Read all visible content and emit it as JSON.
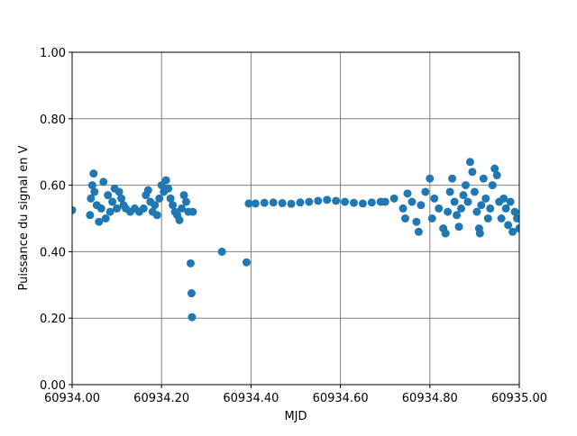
{
  "chart_data": {
    "type": "scatter",
    "xlabel": "MJD",
    "ylabel": "Puissance du signal en V",
    "color": "#1f77b4",
    "grid": true,
    "xlim": [
      60934.0,
      60935.0
    ],
    "xticks": [
      {
        "value": 60934.0,
        "label": "60934.00"
      },
      {
        "value": 60934.2,
        "label": "60934.20"
      },
      {
        "value": 60934.4,
        "label": "60934.40"
      },
      {
        "value": 60934.6,
        "label": "60934.60"
      },
      {
        "value": 60934.8,
        "label": "60934.80"
      },
      {
        "value": 60935.0,
        "label": "60935.00"
      }
    ],
    "ylim": [
      0,
      1
    ],
    "yticks": [
      {
        "value": 0,
        "label": "0.00"
      },
      {
        "value": 0.2,
        "label": "0.20"
      },
      {
        "value": 0.4,
        "label": "0.40"
      },
      {
        "value": 0.6,
        "label": "0.60"
      },
      {
        "value": 0.8,
        "label": "0.80"
      },
      {
        "value": 1,
        "label": "1.00"
      }
    ],
    "x": [
      60934.0,
      60934.04,
      60934.042,
      60934.045,
      60934.048,
      60934.05,
      60934.055,
      60934.06,
      60934.065,
      60934.07,
      60934.075,
      60934.08,
      60934.085,
      60934.09,
      60934.095,
      60934.1,
      60934.105,
      60934.11,
      60934.115,
      60934.12,
      60934.13,
      60934.14,
      60934.15,
      60934.16,
      60934.165,
      60934.17,
      60934.175,
      60934.18,
      60934.185,
      60934.19,
      60934.195,
      60934.2,
      60934.205,
      60934.21,
      60934.215,
      60934.22,
      60934.225,
      60934.23,
      60934.235,
      60934.24,
      60934.245,
      60934.25,
      60934.255,
      60934.26,
      60934.265,
      60934.267,
      60934.268,
      60934.27,
      60934.335,
      60934.39,
      60934.395,
      60934.41,
      60934.43,
      60934.45,
      60934.47,
      60934.49,
      60934.51,
      60934.53,
      60934.55,
      60934.57,
      60934.59,
      60934.61,
      60934.63,
      60934.65,
      60934.67,
      60934.69,
      60934.7,
      60934.72,
      60934.74,
      60934.745,
      60934.75,
      60934.76,
      60934.77,
      60934.775,
      60934.78,
      60934.79,
      60934.8,
      60934.805,
      60934.81,
      60934.82,
      60934.83,
      60934.835,
      60934.84,
      60934.845,
      60934.85,
      60934.855,
      60934.86,
      60934.865,
      60934.87,
      60934.875,
      60934.88,
      60934.885,
      60934.89,
      60934.895,
      60934.9,
      60934.905,
      60934.91,
      60934.912,
      60934.915,
      60934.92,
      60934.925,
      60934.93,
      60934.935,
      60934.94,
      60934.945,
      60934.95,
      60934.955,
      60934.96,
      60934.965,
      60934.97,
      60934.975,
      60934.98,
      60934.985,
      60934.99,
      60934.995,
      60935.0
    ],
    "values": [
      0.525,
      0.51,
      0.56,
      0.6,
      0.635,
      0.58,
      0.54,
      0.49,
      0.53,
      0.61,
      0.5,
      0.57,
      0.52,
      0.55,
      0.59,
      0.53,
      0.58,
      0.56,
      0.54,
      0.53,
      0.52,
      0.53,
      0.52,
      0.53,
      0.57,
      0.585,
      0.55,
      0.52,
      0.54,
      0.51,
      0.56,
      0.6,
      0.58,
      0.615,
      0.59,
      0.56,
      0.54,
      0.52,
      0.51,
      0.495,
      0.53,
      0.57,
      0.55,
      0.52,
      0.365,
      0.275,
      0.203,
      0.52,
      0.4,
      0.368,
      0.545,
      0.545,
      0.547,
      0.548,
      0.546,
      0.544,
      0.548,
      0.55,
      0.553,
      0.556,
      0.553,
      0.55,
      0.547,
      0.545,
      0.548,
      0.55,
      0.55,
      0.56,
      0.53,
      0.5,
      0.575,
      0.55,
      0.49,
      0.46,
      0.54,
      0.58,
      0.62,
      0.5,
      0.56,
      0.53,
      0.47,
      0.455,
      0.52,
      0.58,
      0.62,
      0.55,
      0.51,
      0.475,
      0.53,
      0.57,
      0.6,
      0.55,
      0.67,
      0.64,
      0.58,
      0.52,
      0.47,
      0.455,
      0.54,
      0.62,
      0.56,
      0.5,
      0.53,
      0.6,
      0.65,
      0.63,
      0.55,
      0.5,
      0.56,
      0.53,
      0.48,
      0.55,
      0.46,
      0.52,
      0.5,
      0.47
    ]
  }
}
